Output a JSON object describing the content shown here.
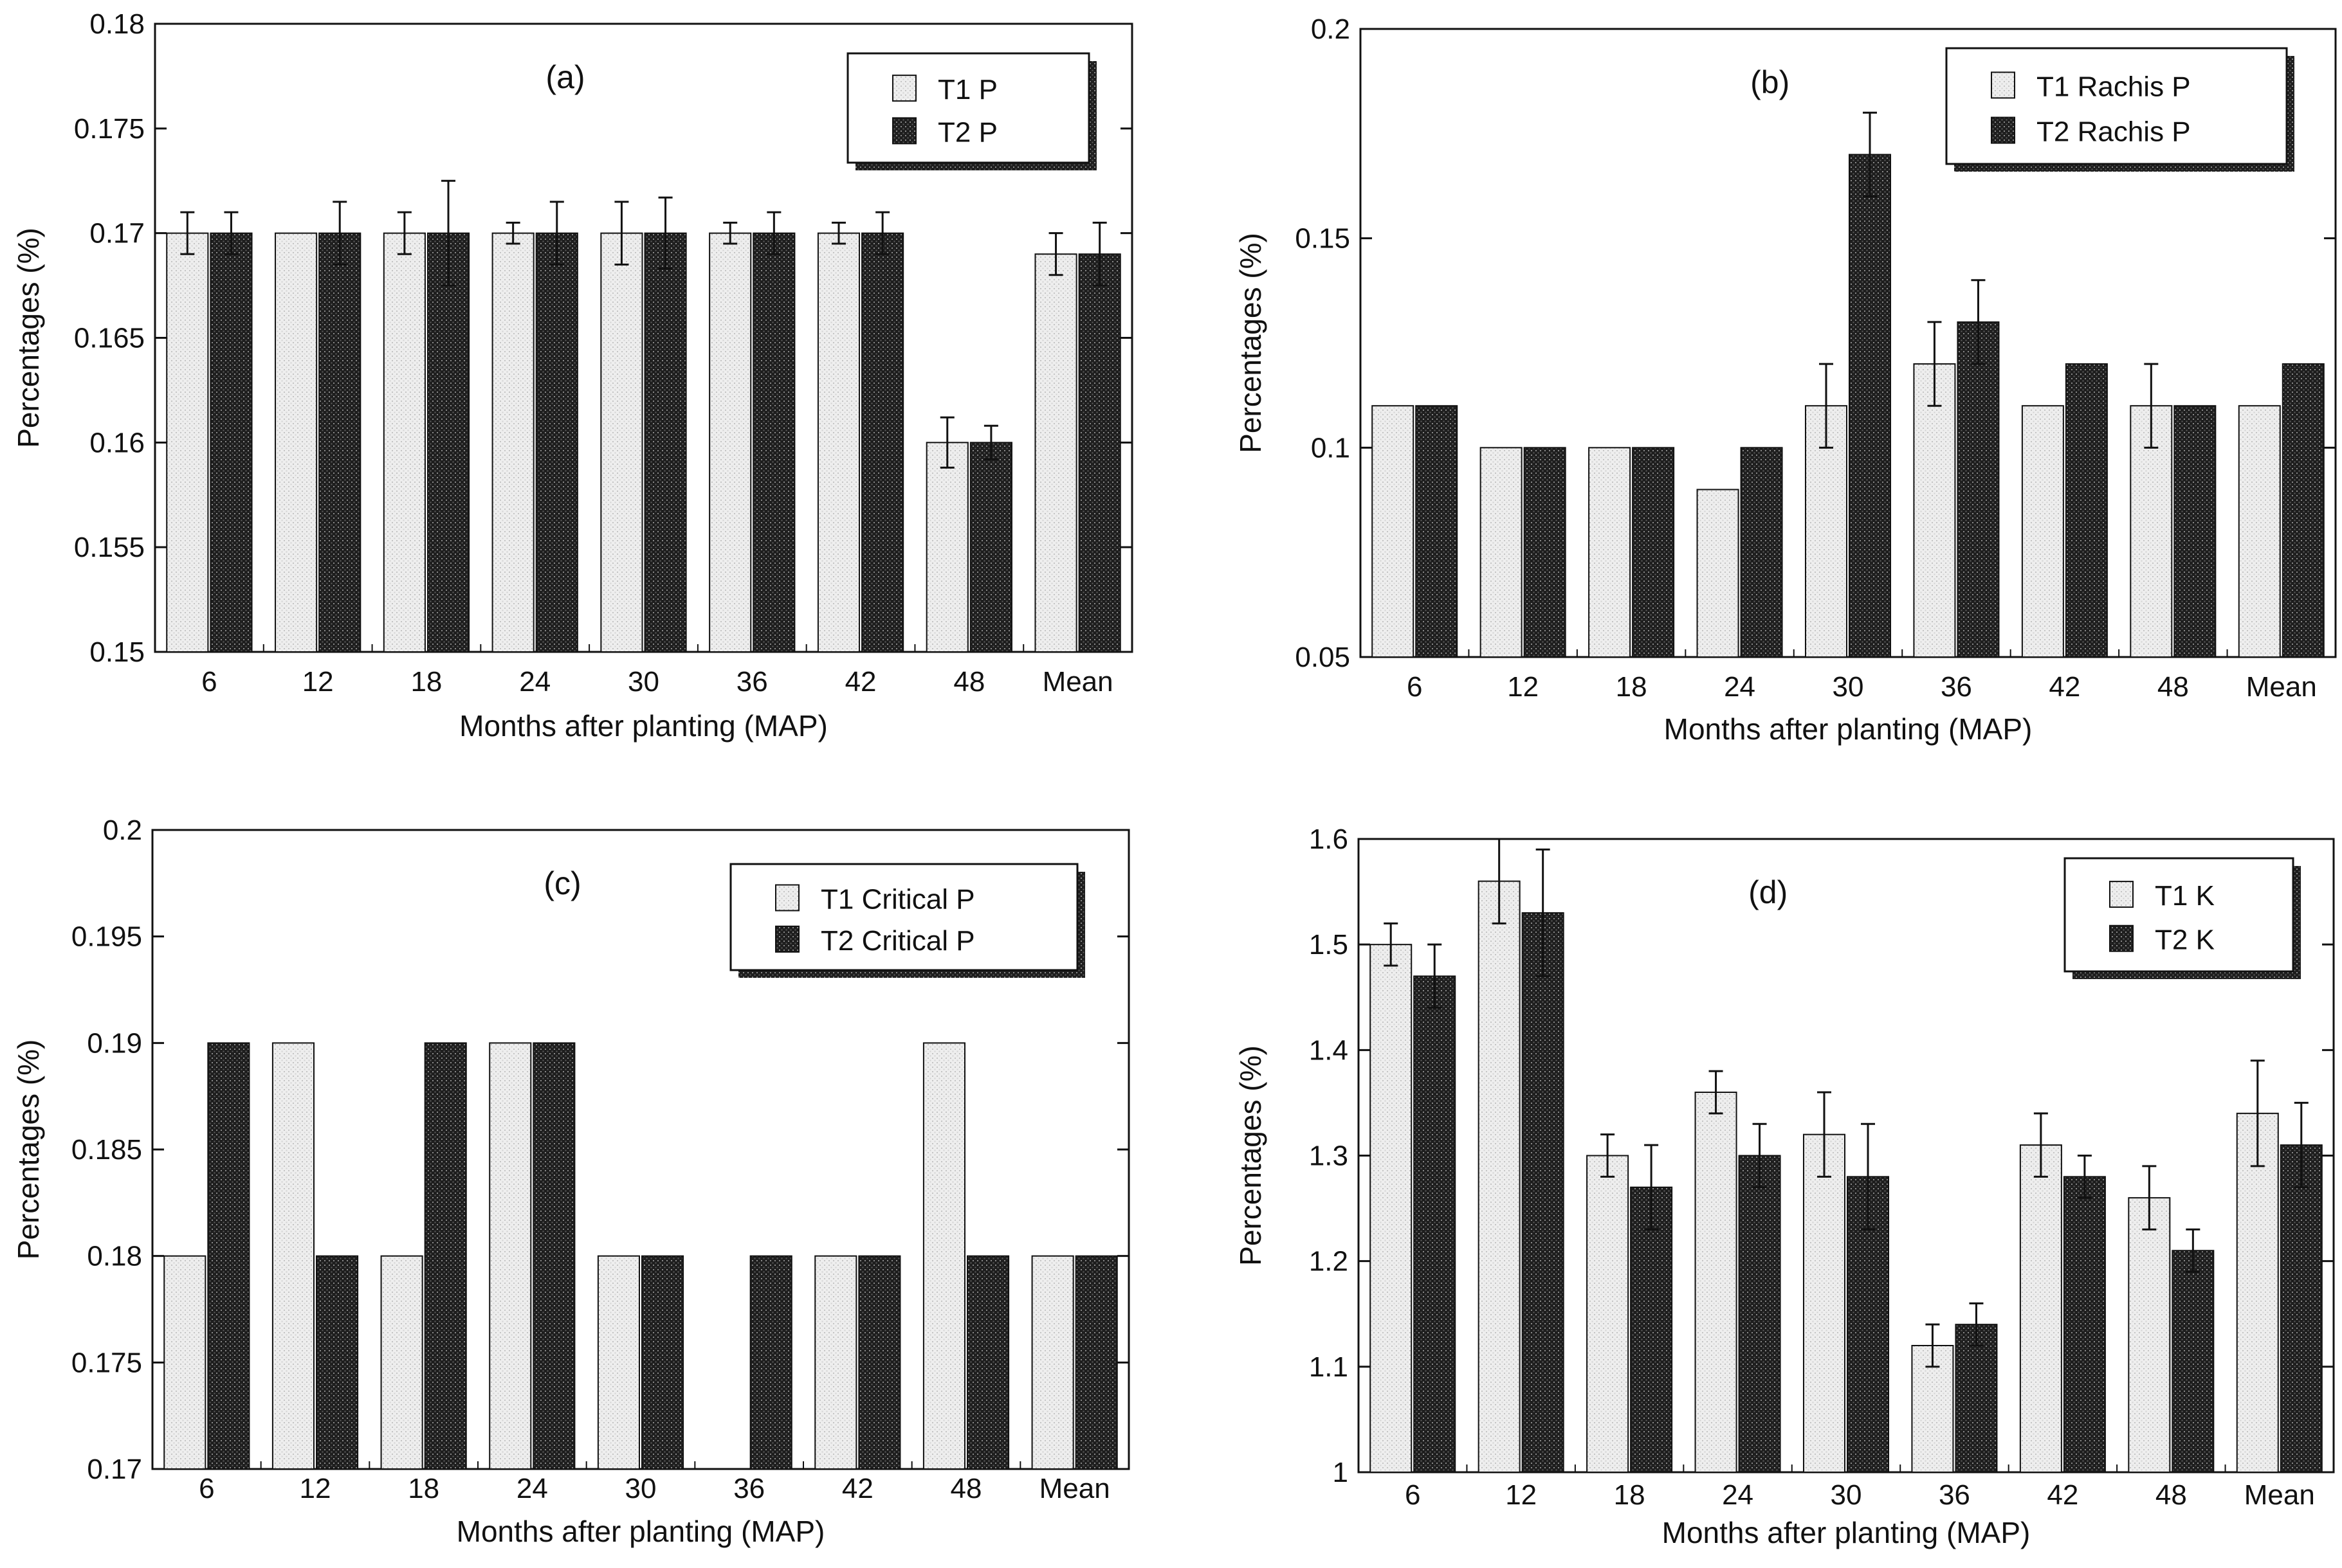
{
  "colors": {
    "t1_fill": "#ebebeb",
    "t2_fill": "#2a2a2a",
    "axis": "#111111",
    "background": "#ffffff"
  },
  "chart_data": [
    {
      "type": "bar",
      "panel_label": "(a)",
      "xlabel": "Months after planting (MAP)",
      "ylabel": "Percentages (%)",
      "categories": [
        "6",
        "12",
        "18",
        "24",
        "30",
        "36",
        "42",
        "48",
        "Mean"
      ],
      "ylim": [
        0.15,
        0.18
      ],
      "yticks": [
        "0.15",
        "0.155",
        "0.16",
        "0.165",
        "0.17",
        "0.175",
        "0.18"
      ],
      "legend_position": "top-right",
      "series": [
        {
          "name": "T1 P",
          "values": [
            0.17,
            0.17,
            0.17,
            0.17,
            0.17,
            0.17,
            0.17,
            0.16,
            0.169
          ],
          "errors": [
            0.001,
            0,
            0.001,
            0.0005,
            0.0015,
            0.0005,
            0.0005,
            0.0012,
            0.001
          ]
        },
        {
          "name": "T2 P",
          "values": [
            0.17,
            0.17,
            0.17,
            0.17,
            0.17,
            0.17,
            0.17,
            0.16,
            0.169
          ],
          "errors": [
            0.001,
            0.0015,
            0.0025,
            0.0015,
            0.0017,
            0.001,
            0.001,
            0.0008,
            0.0015
          ]
        }
      ]
    },
    {
      "type": "bar",
      "panel_label": "(b)",
      "xlabel": "Months after planting (MAP)",
      "ylabel": "Percentages (%)",
      "categories": [
        "6",
        "12",
        "18",
        "24",
        "30",
        "36",
        "42",
        "48",
        "Mean"
      ],
      "ylim": [
        0.05,
        0.2
      ],
      "yticks": [
        "0.05",
        "0.1",
        "0.15",
        "0.2"
      ],
      "legend_position": "top-right",
      "series": [
        {
          "name": "T1 Rachis P",
          "values": [
            0.11,
            0.1,
            0.1,
            0.09,
            0.11,
            0.12,
            0.11,
            0.11,
            0.11
          ],
          "errors": [
            0,
            0,
            0,
            0,
            0.01,
            0.01,
            0,
            0.01,
            0
          ]
        },
        {
          "name": "T2 Rachis P",
          "values": [
            0.11,
            0.1,
            0.1,
            0.1,
            0.17,
            0.13,
            0.12,
            0.11,
            0.12
          ],
          "errors": [
            0,
            0,
            0,
            0,
            0.01,
            0.01,
            0,
            0,
            0
          ]
        }
      ]
    },
    {
      "type": "bar",
      "panel_label": "(c)",
      "xlabel": "Months after planting (MAP)",
      "ylabel": "Percentages (%)",
      "categories": [
        "6",
        "12",
        "18",
        "24",
        "30",
        "36",
        "42",
        "48",
        "Mean"
      ],
      "ylim": [
        0.17,
        0.2
      ],
      "yticks": [
        "0.17",
        "0.175",
        "0.18",
        "0.185",
        "0.19",
        "0.195",
        "0.2"
      ],
      "legend_position": "top-right",
      "series": [
        {
          "name": "T1 Critical P",
          "values": [
            0.18,
            0.19,
            0.18,
            0.19,
            0.18,
            0.17,
            0.18,
            0.19,
            0.18
          ],
          "errors": [
            0,
            0,
            0,
            0,
            0,
            0,
            0,
            0,
            0
          ]
        },
        {
          "name": "T2 Critical P",
          "values": [
            0.19,
            0.18,
            0.19,
            0.19,
            0.18,
            0.18,
            0.18,
            0.18,
            0.18
          ],
          "errors": [
            0,
            0,
            0,
            0,
            0,
            0,
            0,
            0,
            0
          ]
        }
      ]
    },
    {
      "type": "bar",
      "panel_label": "(d)",
      "xlabel": "Months after planting (MAP)",
      "ylabel": "Percentages (%)",
      "categories": [
        "6",
        "12",
        "18",
        "24",
        "30",
        "36",
        "42",
        "48",
        "Mean"
      ],
      "ylim": [
        1,
        1.6
      ],
      "yticks": [
        "1",
        "1.1",
        "1.2",
        "1.3",
        "1.4",
        "1.5",
        "1.6"
      ],
      "legend_position": "top-right",
      "series": [
        {
          "name": "T1 K",
          "values": [
            1.5,
            1.56,
            1.3,
            1.36,
            1.32,
            1.12,
            1.31,
            1.26,
            1.34
          ],
          "errors": [
            0.02,
            0.04,
            0.02,
            0.02,
            0.04,
            0.02,
            0.03,
            0.03,
            0.05
          ]
        },
        {
          "name": "T2 K",
          "values": [
            1.47,
            1.53,
            1.27,
            1.3,
            1.28,
            1.14,
            1.28,
            1.21,
            1.31
          ],
          "errors": [
            0.03,
            0.06,
            0.04,
            0.03,
            0.05,
            0.02,
            0.02,
            0.02,
            0.04
          ]
        }
      ]
    }
  ]
}
